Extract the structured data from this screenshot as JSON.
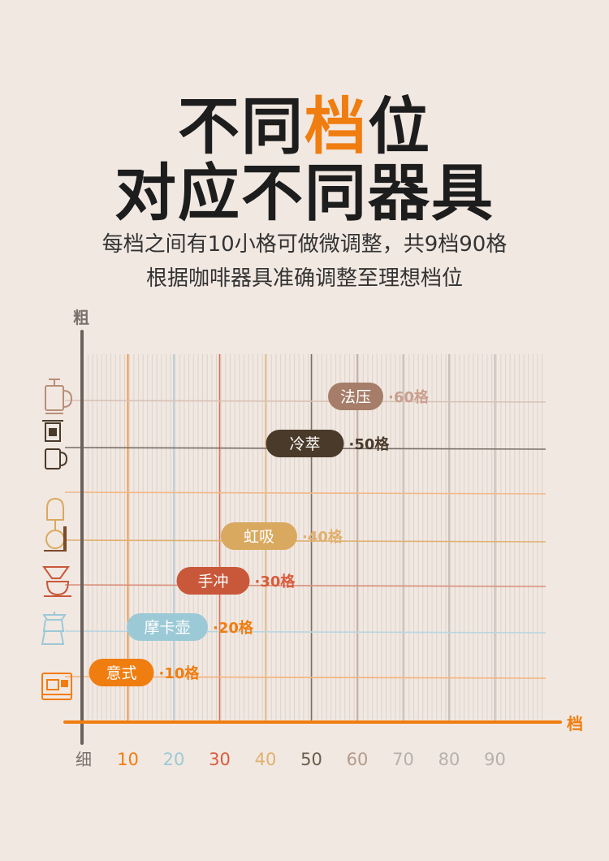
{
  "header": {
    "title_line1_a": "不同",
    "title_line1_highlight": "档",
    "title_line1_b": "位",
    "title_line2": "对应不同器具",
    "subtitle_line1": "每档之间有10小格可做微调整，共9档90格",
    "subtitle_line2": "根据咖啡器具准确调整至理想档位",
    "accent_color": "#f07d10"
  },
  "chart_data": {
    "type": "bar",
    "y_axis_top_label": "粗",
    "y_axis_bottom_label": "细",
    "x_axis_label": "档",
    "x_ticks": [
      {
        "label": "10",
        "color": "#f07d10"
      },
      {
        "label": "20",
        "color": "#9cc9d6"
      },
      {
        "label": "30",
        "color": "#d95b3c"
      },
      {
        "label": "40",
        "color": "#e0b070"
      },
      {
        "label": "50",
        "color": "#6b5c4b"
      },
      {
        "label": "60",
        "color": "#b59a8a"
      },
      {
        "label": "70",
        "color": "#b8b0ac"
      },
      {
        "label": "80",
        "color": "#b8b0ac"
      },
      {
        "label": "90",
        "color": "#b8b0ac"
      }
    ],
    "xlim": [
      0,
      100
    ],
    "grid": true,
    "items": [
      {
        "name": "法压",
        "value": 60,
        "value_label": "·60格",
        "color": "#a57d69",
        "label_color": "#c9a08e",
        "icon": "french-press-icon"
      },
      {
        "name": "冷萃",
        "value": 50,
        "value_label": "·50格",
        "color": "#4a3a2a",
        "label_color": "#4a3a2a",
        "icon": "cold-brew-icon"
      },
      {
        "name": "虹吸",
        "value": 40,
        "value_label": "·40格",
        "color": "#d9a960",
        "label_color": "#e0b070",
        "icon": "siphon-icon"
      },
      {
        "name": "手冲",
        "value": 30,
        "value_label": "·30格",
        "color": "#c9583a",
        "label_color": "#d95b3c",
        "icon": "pour-over-icon"
      },
      {
        "name": "摩卡壶",
        "value": 20,
        "value_label": "·20格",
        "color": "#9cc9d6",
        "label_color": "#f07d10",
        "icon": "moka-pot-icon"
      },
      {
        "name": "意式",
        "value": 10,
        "value_label": "·10格",
        "color": "#f07d10",
        "label_color": "#f07d10",
        "icon": "espresso-machine-icon"
      }
    ]
  }
}
